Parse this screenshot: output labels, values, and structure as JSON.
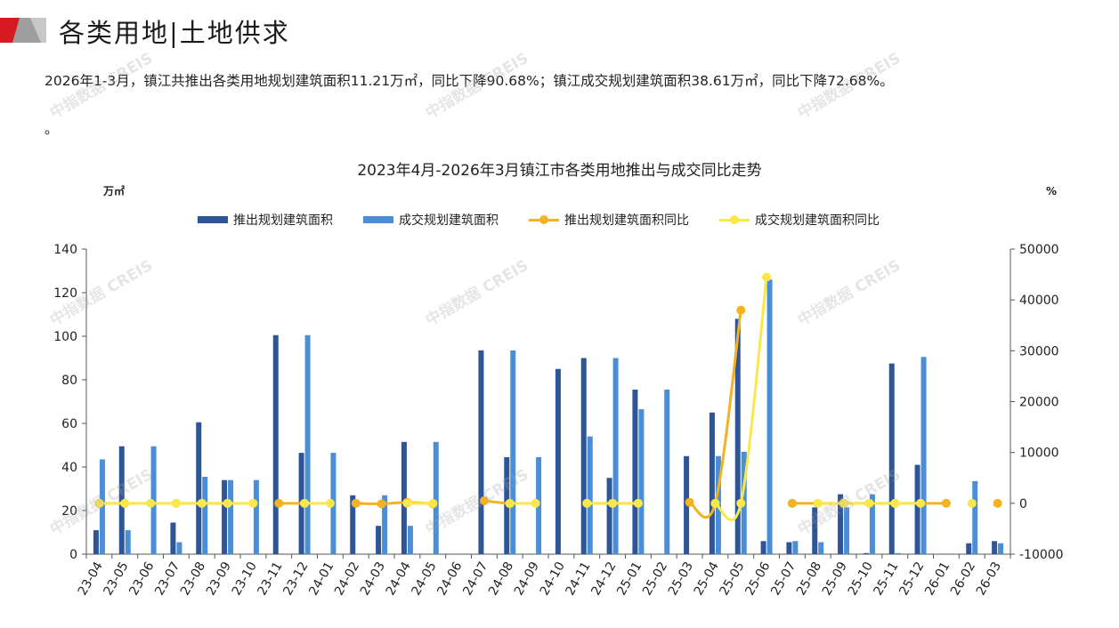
{
  "header": {
    "title": "各类用地|土地供求",
    "summary": "2026年1-3月，镇江共推出各类用地规划建筑面积11.21万㎡，同比下降90.68%；镇江成交规划建筑面积38.61万㎡，同比下降72.68%。",
    "summary_tail": "。"
  },
  "watermark": "中指数据 CREIS",
  "colors": {
    "supply_bar": "#2e5597",
    "deal_bar": "#4a8fd6",
    "supply_yoy": "#f2b222",
    "deal_yoy": "#fae84a"
  },
  "chart_data": {
    "type": "bar",
    "title": "2023年4月-2026年3月镇江市各类用地推出与成交同比走势",
    "ylabel": "万㎡",
    "y2label": "%",
    "ylim": [
      0,
      140
    ],
    "y2lim": [
      -10000,
      50000
    ],
    "yticks": [
      "0",
      "20",
      "40",
      "60",
      "80",
      "100",
      "120",
      "140"
    ],
    "y2ticks": [
      "-10000",
      "0",
      "10000",
      "20000",
      "30000",
      "40000",
      "50000"
    ],
    "legend_position": "top",
    "grid": false,
    "categories": [
      "23-04",
      "23-05",
      "23-06",
      "23-07",
      "23-08",
      "23-09",
      "23-10",
      "23-11",
      "23-12",
      "24-01",
      "24-02",
      "24-03",
      "24-04",
      "24-05",
      "24-06",
      "24-07",
      "24-08",
      "24-09",
      "24-10",
      "24-11",
      "24-12",
      "25-01",
      "25-02",
      "25-03",
      "25-04",
      "25-05",
      "25-06",
      "25-07",
      "25-08",
      "25-09",
      "25-10",
      "25-11",
      "25-12",
      "26-01",
      "26-02",
      "26-03"
    ],
    "series": [
      {
        "name": "推出规划建筑面积",
        "type": "bar",
        "axis": "left",
        "values": [
          11,
          49.5,
          0,
          14.5,
          60.5,
          34,
          0,
          100.5,
          46.5,
          0,
          27,
          13,
          51.5,
          0,
          0,
          93.5,
          44.5,
          0,
          85,
          90,
          35,
          75.5,
          0,
          45,
          65,
          108,
          6,
          5.5,
          21.5,
          27.5,
          0.5,
          87.5,
          41,
          0,
          5,
          6
        ]
      },
      {
        "name": "成交规划建筑面积",
        "type": "bar",
        "axis": "left",
        "values": [
          43.5,
          11,
          49.5,
          5.5,
          35.5,
          34,
          34,
          0,
          100.5,
          46.5,
          0,
          27,
          13,
          51.5,
          0,
          0,
          93.5,
          44.5,
          0,
          54,
          90,
          66.5,
          75.5,
          0,
          45,
          47,
          126,
          6,
          5.5,
          21.5,
          27.5,
          0.5,
          90.5,
          0,
          33.5,
          5
        ]
      },
      {
        "name": "推出规划建筑面积同比",
        "type": "line",
        "axis": "right",
        "values": [
          0,
          0,
          null,
          0,
          0,
          0,
          null,
          0,
          0,
          null,
          0,
          -100,
          200,
          -100,
          null,
          500,
          -100,
          null,
          null,
          0,
          0,
          0,
          null,
          200,
          0,
          38000,
          null,
          0,
          0,
          0,
          0,
          0,
          0,
          0,
          null,
          0
        ]
      },
      {
        "name": "成交规划建筑面积同比",
        "type": "line",
        "axis": "right",
        "values": [
          0,
          0,
          0,
          0,
          0,
          0,
          0,
          null,
          0,
          0,
          null,
          null,
          0,
          0,
          null,
          null,
          0,
          0,
          null,
          0,
          0,
          0,
          null,
          null,
          0,
          0,
          44500,
          null,
          0,
          0,
          0,
          0,
          0,
          null,
          0,
          null
        ]
      }
    ]
  }
}
